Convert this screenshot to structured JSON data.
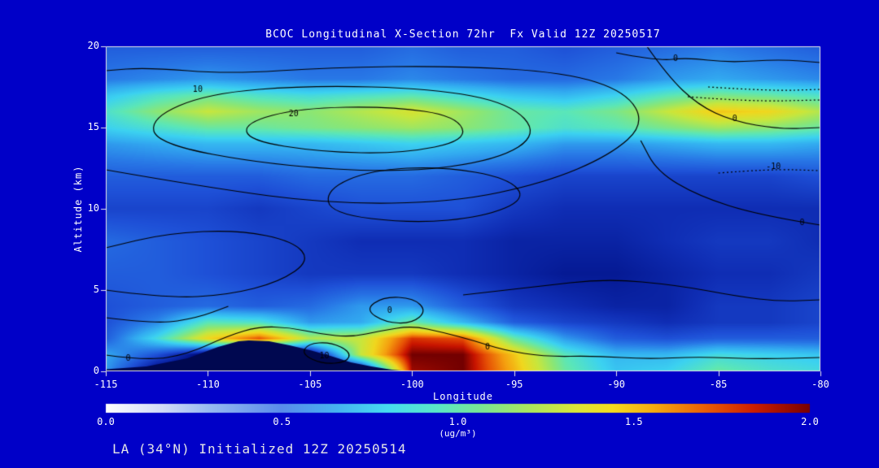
{
  "title": "BCOC Longitudinal X-Section 72hr  Fx Valid 12Z 20250517",
  "footer": "LA (34°N) Initialized 12Z 20250514",
  "colors": {
    "background": "#0000c8",
    "text": "#ffffff",
    "frame": "#e8e8e8",
    "contour": "#000000",
    "terrain": "#000850"
  },
  "chart_data": {
    "type": "heatmap",
    "title": "BCOC Longitudinal X-Section 72hr  Fx Valid 12Z 20250517",
    "xlabel": "Longitude",
    "ylabel": "Altitude (km)",
    "xlim": [
      -115,
      -80
    ],
    "ylim": [
      0,
      20
    ],
    "x_ticks": [
      -115,
      -110,
      -105,
      -100,
      -95,
      -90,
      -85,
      -80
    ],
    "y_ticks": [
      0,
      5,
      10,
      15,
      20
    ],
    "units": "ug/m³",
    "x": [
      -115,
      -112.5,
      -110,
      -107.5,
      -105,
      -102.5,
      -100,
      -97.5,
      -95,
      -92.5,
      -90,
      -87.5,
      -85,
      -82.5,
      -80
    ],
    "y": [
      0,
      1,
      2,
      3,
      4,
      6,
      8,
      10,
      12,
      14,
      15,
      16,
      17,
      18,
      20
    ],
    "values_ug_m3": [
      [
        0.7,
        0.1,
        0.05,
        0.05,
        0.05,
        0.1,
        1.95,
        2.0,
        1.6,
        1.1,
        0.85,
        0.9,
        1.1,
        1.0,
        0.95
      ],
      [
        0.75,
        0.45,
        0.05,
        0.05,
        0.05,
        1.35,
        2.0,
        2.0,
        1.55,
        1.05,
        0.8,
        0.8,
        0.95,
        0.9,
        0.85
      ],
      [
        0.5,
        0.95,
        1.5,
        1.8,
        1.3,
        1.35,
        1.85,
        1.8,
        1.1,
        0.7,
        0.5,
        0.45,
        0.5,
        0.5,
        0.5
      ],
      [
        0.45,
        0.65,
        1.05,
        1.0,
        0.7,
        0.75,
        1.1,
        0.8,
        0.5,
        0.4,
        0.35,
        0.3,
        0.35,
        0.35,
        0.4
      ],
      [
        0.45,
        0.5,
        0.55,
        0.5,
        0.55,
        0.7,
        0.7,
        0.5,
        0.35,
        0.3,
        0.25,
        0.25,
        0.35,
        0.35,
        0.4
      ],
      [
        0.5,
        0.5,
        0.45,
        0.4,
        0.35,
        0.35,
        0.35,
        0.3,
        0.25,
        0.2,
        0.2,
        0.25,
        0.3,
        0.3,
        0.35
      ],
      [
        0.55,
        0.5,
        0.45,
        0.4,
        0.35,
        0.3,
        0.3,
        0.3,
        0.25,
        0.25,
        0.25,
        0.3,
        0.35,
        0.35,
        0.3
      ],
      [
        0.4,
        0.4,
        0.4,
        0.35,
        0.4,
        0.45,
        0.45,
        0.45,
        0.35,
        0.3,
        0.3,
        0.3,
        0.3,
        0.3,
        0.3
      ],
      [
        0.5,
        0.5,
        0.5,
        0.5,
        0.55,
        0.55,
        0.55,
        0.5,
        0.45,
        0.4,
        0.4,
        0.4,
        0.4,
        0.4,
        0.45
      ],
      [
        0.7,
        0.75,
        0.8,
        0.8,
        0.8,
        0.85,
        0.9,
        0.85,
        0.8,
        0.7,
        0.7,
        0.75,
        0.8,
        0.8,
        0.75
      ],
      [
        0.9,
        1.0,
        1.1,
        1.1,
        1.15,
        1.2,
        1.25,
        1.2,
        1.1,
        1.0,
        1.05,
        1.15,
        1.25,
        1.2,
        1.1
      ],
      [
        1.0,
        1.2,
        1.35,
        1.25,
        1.2,
        1.3,
        1.4,
        1.25,
        1.1,
        1.05,
        1.15,
        1.35,
        1.55,
        1.5,
        1.3
      ],
      [
        0.85,
        1.0,
        1.1,
        1.0,
        0.95,
        1.0,
        1.05,
        0.95,
        0.85,
        0.8,
        0.9,
        1.05,
        1.15,
        1.1,
        1.0
      ],
      [
        0.6,
        0.65,
        0.7,
        0.65,
        0.6,
        0.6,
        0.65,
        0.6,
        0.55,
        0.55,
        0.6,
        0.7,
        0.75,
        0.7,
        0.65
      ],
      [
        0.5,
        0.5,
        0.5,
        0.5,
        0.5,
        0.5,
        0.55,
        0.5,
        0.5,
        0.45,
        0.5,
        0.55,
        0.6,
        0.55,
        0.5
      ]
    ],
    "terrain_km": {
      "x": [
        -115,
        -113,
        -111,
        -109.5,
        -108.5,
        -108,
        -107,
        -106,
        -105,
        -104,
        -103,
        -102,
        -101,
        -100
      ],
      "elev": [
        0.12,
        0.3,
        0.8,
        1.5,
        1.85,
        1.9,
        1.85,
        1.6,
        1.3,
        0.95,
        0.55,
        0.3,
        0.1,
        0.0
      ]
    },
    "field_colormap": [
      {
        "v": 0.0,
        "c": "#000a69"
      },
      {
        "v": 0.15,
        "c": "#001084"
      },
      {
        "v": 0.3,
        "c": "#0f2db4"
      },
      {
        "v": 0.45,
        "c": "#1e50d7"
      },
      {
        "v": 0.6,
        "c": "#2878e6"
      },
      {
        "v": 0.75,
        "c": "#32aaf0"
      },
      {
        "v": 0.9,
        "c": "#3cd2f0"
      },
      {
        "v": 1.05,
        "c": "#5ae6b9"
      },
      {
        "v": 1.2,
        "c": "#8ce673"
      },
      {
        "v": 1.35,
        "c": "#c8e63c"
      },
      {
        "v": 1.5,
        "c": "#f0d71e"
      },
      {
        "v": 1.65,
        "c": "#f5a00f"
      },
      {
        "v": 1.8,
        "c": "#e65005"
      },
      {
        "v": 1.9,
        "c": "#c81400"
      },
      {
        "v": 2.0,
        "c": "#730000"
      }
    ],
    "colorbar": {
      "min": 0.0,
      "max": 2.0,
      "tick_labels": [
        "0.0",
        "0.5",
        "1.0",
        "1.5",
        "2.0"
      ],
      "label": "(ug/m³)",
      "stops": [
        {
          "t": 0.0,
          "c": "#ffffff"
        },
        {
          "t": 0.08,
          "c": "#d2dcf7"
        },
        {
          "t": 0.15,
          "c": "#96b9f0"
        },
        {
          "t": 0.25,
          "c": "#5a8ceb"
        },
        {
          "t": 0.33,
          "c": "#46b4f0"
        },
        {
          "t": 0.4,
          "c": "#46dcf0"
        },
        {
          "t": 0.47,
          "c": "#5ae6c8"
        },
        {
          "t": 0.53,
          "c": "#78e696"
        },
        {
          "t": 0.6,
          "c": "#aae65f"
        },
        {
          "t": 0.67,
          "c": "#dce637"
        },
        {
          "t": 0.72,
          "c": "#f5dc1e"
        },
        {
          "t": 0.78,
          "c": "#f5aa0f"
        },
        {
          "t": 0.85,
          "c": "#eb5f05"
        },
        {
          "t": 0.92,
          "c": "#cd1e00"
        },
        {
          "t": 1.0,
          "c": "#780000"
        }
      ]
    },
    "contours": [
      {
        "label": "20",
        "closed": true,
        "pts": [
          [
            -108,
            14.2
          ],
          [
            -104.5,
            13.5
          ],
          [
            -100.5,
            13.4
          ],
          [
            -97.3,
            14.2
          ],
          [
            -97.8,
            15.7
          ],
          [
            -101,
            16.3
          ],
          [
            -105.5,
            16.2
          ],
          [
            -108.2,
            15.3
          ]
        ],
        "label_at": [
          -105.8,
          15.85
        ]
      },
      {
        "label": "10",
        "closed": true,
        "pts": [
          [
            -112.5,
            14
          ],
          [
            -107,
            12.7
          ],
          [
            -100.5,
            12.2
          ],
          [
            -95.8,
            13
          ],
          [
            -93.8,
            14.6
          ],
          [
            -95.2,
            16.5
          ],
          [
            -99,
            17.4
          ],
          [
            -105,
            17.6
          ],
          [
            -110,
            17.1
          ],
          [
            -112.8,
            15.6
          ]
        ],
        "label_at": [
          -110.5,
          17.35
        ]
      },
      {
        "label": "",
        "closed": false,
        "pts": [
          [
            -115,
            12.4
          ],
          [
            -110,
            11.3
          ],
          [
            -104,
            10.3
          ],
          [
            -98,
            10.4
          ],
          [
            -93.5,
            11.6
          ],
          [
            -90.3,
            13.3
          ],
          [
            -88.6,
            15.2
          ],
          [
            -89.5,
            17.2
          ],
          [
            -92.5,
            18.4
          ],
          [
            -98,
            18.8
          ],
          [
            -104,
            18.7
          ],
          [
            -109,
            18.3
          ],
          [
            -113,
            18.7
          ],
          [
            -115,
            18.5
          ]
        ],
        "label_at": null
      },
      {
        "label": "0",
        "closed": false,
        "pts": [
          [
            -90,
            19.6
          ],
          [
            -88,
            19.1
          ],
          [
            -86.5,
            19.3
          ],
          [
            -84.5,
            19.0
          ],
          [
            -82,
            19.2
          ],
          [
            -80,
            19.0
          ]
        ],
        "label_at": [
          -87.1,
          19.25
        ]
      },
      {
        "label": "0",
        "closed": false,
        "pts": [
          [
            -88.5,
            20
          ],
          [
            -87.5,
            18.2
          ],
          [
            -86,
            16.4
          ],
          [
            -84.3,
            15.4
          ],
          [
            -82,
            14.9
          ],
          [
            -80,
            15.0
          ]
        ],
        "label_at": [
          -84.2,
          15.55
        ]
      },
      {
        "label": "0",
        "closed": false,
        "pts": [
          [
            -80,
            9.0
          ],
          [
            -83,
            9.6
          ],
          [
            -86,
            10.8
          ],
          [
            -88,
            12.3
          ],
          [
            -88.8,
            14.2
          ]
        ],
        "label_at": [
          -80.9,
          9.15
        ]
      },
      {
        "label": "0",
        "closed": true,
        "pts": [
          [
            -102.3,
            3.8
          ],
          [
            -101.3,
            3.0
          ],
          [
            -100,
            2.95
          ],
          [
            -99.3,
            3.7
          ],
          [
            -99.9,
            4.5
          ],
          [
            -101.4,
            4.6
          ]
        ],
        "label_at": [
          -101.1,
          3.75
        ]
      },
      {
        "label": "10",
        "closed": true,
        "pts": [
          [
            -105.4,
            1.05
          ],
          [
            -104.4,
            0.45
          ],
          [
            -103.2,
            0.55
          ],
          [
            -103.0,
            1.2
          ],
          [
            -104.0,
            1.8
          ],
          [
            -105.1,
            1.7
          ]
        ],
        "label_at": [
          -104.3,
          0.95
        ]
      },
      {
        "label": "0",
        "closed": false,
        "pts": [
          [
            -115,
            1.0
          ],
          [
            -113,
            0.65
          ],
          [
            -111,
            1.05
          ],
          [
            -109,
            2.2
          ],
          [
            -107.5,
            2.75
          ],
          [
            -106,
            2.7
          ],
          [
            -104.5,
            2.3
          ],
          [
            -103,
            2.1
          ],
          [
            -101.5,
            2.5
          ],
          [
            -100,
            2.8
          ],
          [
            -98.5,
            2.4
          ],
          [
            -97,
            1.9
          ],
          [
            -95.5,
            1.3
          ],
          [
            -93.5,
            0.9
          ],
          [
            -91,
            0.95
          ],
          [
            -88.5,
            0.75
          ],
          [
            -86,
            0.9
          ],
          [
            -83,
            0.75
          ],
          [
            -80,
            0.85
          ]
        ],
        "label_at": [
          -113.9,
          0.78
        ]
      },
      {
        "label": "",
        "closed": false,
        "pts": [
          [
            -115,
            5.0
          ],
          [
            -112,
            4.5
          ],
          [
            -109,
            4.7
          ],
          [
            -106.5,
            5.5
          ],
          [
            -105,
            6.8
          ],
          [
            -105.8,
            8.0
          ],
          [
            -108.5,
            8.7
          ],
          [
            -112,
            8.5
          ],
          [
            -115,
            7.6
          ]
        ],
        "label_at": null
      },
      {
        "label": "",
        "closed": false,
        "pts": [
          [
            -115,
            3.3
          ],
          [
            -112.5,
            2.9
          ],
          [
            -110.5,
            3.3
          ],
          [
            -109,
            4.0
          ]
        ],
        "label_at": null
      },
      {
        "label": "",
        "closed": false,
        "pts": [
          [
            -97.5,
            4.7
          ],
          [
            -94,
            5.2
          ],
          [
            -90.5,
            5.7
          ],
          [
            -87,
            5.3
          ],
          [
            -84,
            4.6
          ],
          [
            -82,
            4.3
          ],
          [
            -80,
            4.4
          ]
        ],
        "label_at": null
      },
      {
        "label": "",
        "closed": true,
        "pts": [
          [
            -104,
            9.7
          ],
          [
            -100,
            9.1
          ],
          [
            -96.5,
            9.5
          ],
          [
            -94.4,
            10.6
          ],
          [
            -95.3,
            11.9
          ],
          [
            -98.5,
            12.6
          ],
          [
            -102,
            12.4
          ],
          [
            -104.2,
            11.2
          ]
        ],
        "label_at": null
      },
      {
        "label": "",
        "dashed": true,
        "closed": false,
        "pts": [
          [
            -86.5,
            16.9
          ],
          [
            -83.5,
            16.6
          ],
          [
            -80,
            16.7
          ]
        ],
        "label_at": null
      },
      {
        "label": "",
        "dashed": true,
        "closed": false,
        "pts": [
          [
            -85.5,
            17.5
          ],
          [
            -82.5,
            17.25
          ],
          [
            -80,
            17.35
          ]
        ],
        "label_at": null
      },
      {
        "label": "-10",
        "dashed": true,
        "closed": false,
        "pts": [
          [
            -85,
            12.2
          ],
          [
            -82.5,
            12.45
          ],
          [
            -80,
            12.35
          ]
        ],
        "label_at": [
          -82.3,
          12.6
        ]
      }
    ],
    "contour_extra_labels": [
      {
        "text": "0",
        "x": -96.3,
        "y": 1.5
      }
    ]
  }
}
